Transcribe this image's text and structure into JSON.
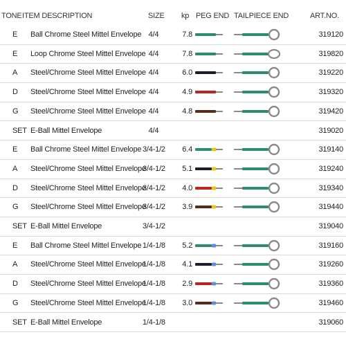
{
  "header": {
    "tone": "TONE",
    "item": "ITEM DESCRIPTION",
    "size": "SIZE",
    "kp": "kp",
    "peg": "PEG END",
    "tail": "TAILPIECE END",
    "art": "ART.NO."
  },
  "colors": {
    "green": "#2e8b6e",
    "grey": "#8a8a8a",
    "black": "#1c1c2e",
    "red": "#b8261f",
    "brown": "#5a2a1a",
    "yellow": "#e8c61a",
    "blue": "#5b8fd6"
  },
  "rows": [
    {
      "tone": "E",
      "desc": "Ball Chrome Steel Mittel Envelope",
      "size": "4/4",
      "kp": "7.8",
      "art": "319120",
      "peg": "green",
      "tip": null,
      "tail": "ball"
    },
    {
      "tone": "E",
      "desc": "Loop Chrome Steel Mittel Envelope",
      "size": "4/4",
      "kp": "7.8",
      "art": "319820",
      "peg": "green",
      "tip": null,
      "tail": "loop"
    },
    {
      "tone": "A",
      "desc": "Steel/Chrome Steel Mittel Envelope",
      "size": "4/4",
      "kp": "6.0",
      "art": "319220",
      "peg": "black",
      "tip": null,
      "tail": "ball"
    },
    {
      "tone": "D",
      "desc": "Steel/Chrome Steel Mittel Envelope",
      "size": "4/4",
      "kp": "4.9",
      "art": "319320",
      "peg": "red",
      "tip": null,
      "tail": "ball"
    },
    {
      "tone": "G",
      "desc": "Steel/Chrome Steel Mittel Envelope",
      "size": "4/4",
      "kp": "4.8",
      "art": "319420",
      "peg": "brown",
      "tip": null,
      "tail": "ball"
    },
    {
      "tone": "SET",
      "desc": "E-Ball Mittel Envelope",
      "size": "4/4",
      "kp": "",
      "art": "319020",
      "peg": null,
      "tip": null,
      "tail": null
    },
    {
      "tone": "E",
      "desc": "Ball Chrome Steel Mittel Envelope",
      "size": "3/4-1/2",
      "kp": "6.4",
      "art": "319140",
      "peg": "green",
      "tip": "yellow",
      "tail": "ball"
    },
    {
      "tone": "A",
      "desc": "Steel/Chrome Steel Mittel Envelope",
      "size": "3/4-1/2",
      "kp": "5.1",
      "art": "319240",
      "peg": "black",
      "tip": "yellow",
      "tail": "ball"
    },
    {
      "tone": "D",
      "desc": "Steel/Chrome Steel Mittel Envelope",
      "size": "3/4-1/2",
      "kp": "4.0",
      "art": "319340",
      "peg": "red",
      "tip": "yellow",
      "tail": "ball"
    },
    {
      "tone": "G",
      "desc": "Steel/Chrome Steel Mittel Envelope",
      "size": "3/4-1/2",
      "kp": "3.9",
      "art": "319440",
      "peg": "brown",
      "tip": "yellow",
      "tail": "ball"
    },
    {
      "tone": "SET",
      "desc": "E-Ball Mittel Envelope",
      "size": "3/4-1/2",
      "kp": "",
      "art": "319040",
      "peg": null,
      "tip": null,
      "tail": null
    },
    {
      "tone": "E",
      "desc": "Ball Chrome Steel Mittel Envelope",
      "size": "1/4-1/8",
      "kp": "5.2",
      "art": "319160",
      "peg": "green",
      "tip": "blue",
      "tail": "ball"
    },
    {
      "tone": "A",
      "desc": "Steel/Chrome Steel Mittel Envelope",
      "size": "1/4-1/8",
      "kp": "4.1",
      "art": "319260",
      "peg": "black",
      "tip": "blue",
      "tail": "ball"
    },
    {
      "tone": "D",
      "desc": "Steel/Chrome Steel Mittel Envelope",
      "size": "1/4-1/8",
      "kp": "2.9",
      "art": "319360",
      "peg": "red",
      "tip": "blue",
      "tail": "ball"
    },
    {
      "tone": "G",
      "desc": "Steel/Chrome Steel Mittel Envelope",
      "size": "1/4-1/8",
      "kp": "3.0",
      "art": "319460",
      "peg": "brown",
      "tip": "blue",
      "tail": "ball"
    },
    {
      "tone": "SET",
      "desc": "E-Ball Mittel Envelope",
      "size": "1/4-1/8",
      "kp": "",
      "art": "319060",
      "peg": null,
      "tip": null,
      "tail": null
    }
  ]
}
